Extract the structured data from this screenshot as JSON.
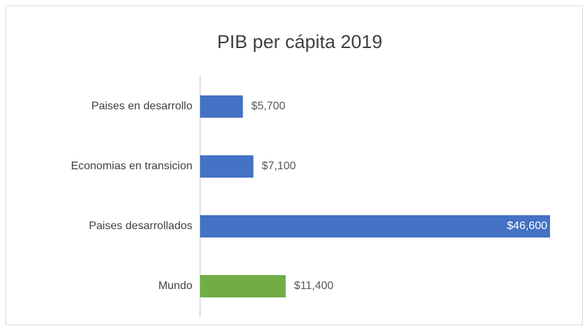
{
  "chart_data": {
    "type": "bar",
    "orientation": "horizontal",
    "title": "PIB per cápita 2019",
    "categories": [
      "Paises en desarrollo",
      "Economias en transicion",
      "Paises desarrollados",
      "Mundo"
    ],
    "values": [
      5700,
      7100,
      46600,
      11400
    ],
    "value_labels": [
      "$5,700",
      "$7,100",
      "$46,600",
      "$11,400"
    ],
    "colors": [
      "#4472c4",
      "#4472c4",
      "#4472c4",
      "#70ad47"
    ]
  }
}
